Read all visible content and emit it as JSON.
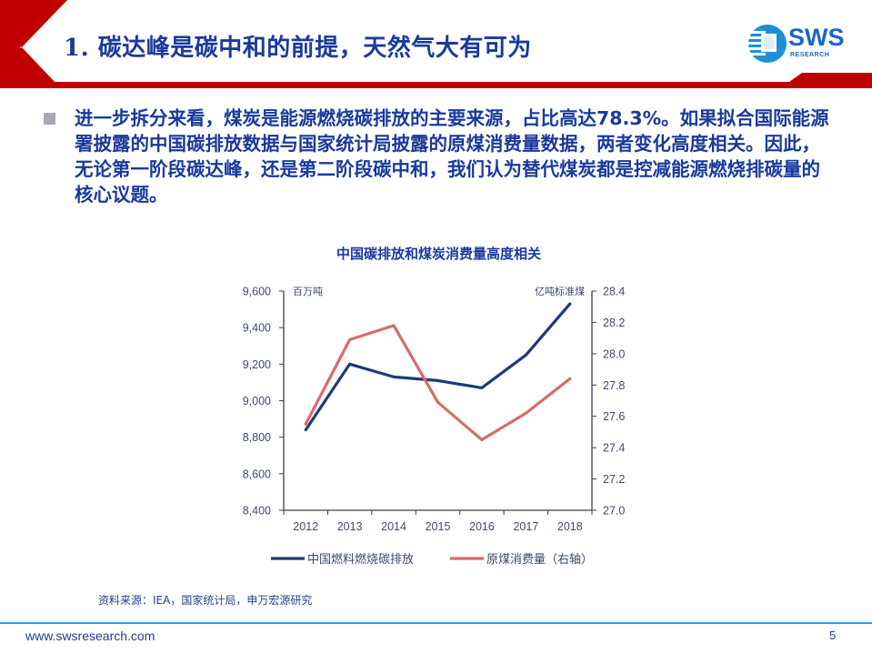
{
  "header": {
    "title": "1. 碳达峰是碳中和的前提，天然气大有可为",
    "logo_text": "SWS",
    "logo_subtext": "RESEARCH"
  },
  "bullet": {
    "text": "进一步拆分来看，煤炭是能源燃烧碳排放的主要来源，占比高达78.3%。如果拟合国际能源署披露的中国碳排放数据与国家统计局披露的原煤消费量数据，两者变化高度相关。因此，无论第一阶段碳达峰，还是第二阶段碳中和，我们认为替代煤炭都是控减能源燃烧排碳量的核心议题。"
  },
  "colors": {
    "brand_red": "#c00000",
    "title_blue": "#1a3a9c",
    "series_blue": "#1f3a7a",
    "series_red": "#d96b6b",
    "footer_line": "#1aa3e6"
  },
  "chart_data": {
    "type": "line",
    "title": "中国碳排放和煤炭消费量高度相关",
    "categories": [
      "2012",
      "2013",
      "2014",
      "2015",
      "2016",
      "2017",
      "2018"
    ],
    "series": [
      {
        "name": "中国燃料燃烧碳排放",
        "axis": "left",
        "values": [
          8840,
          9200,
          9130,
          9110,
          9070,
          9250,
          9530
        ]
      },
      {
        "name": "原煤消费量（右轴）",
        "axis": "right",
        "values": [
          27.55,
          28.09,
          28.18,
          27.69,
          27.45,
          27.62,
          27.84
        ]
      }
    ],
    "left_axis": {
      "label": "百万吨",
      "ylim": [
        8400,
        9600
      ],
      "ticks": [
        "8,400",
        "8,600",
        "8,800",
        "9,000",
        "9,200",
        "9,400",
        "9,600"
      ]
    },
    "right_axis": {
      "label": "亿吨标准煤",
      "ylim": [
        27.0,
        28.4
      ],
      "ticks": [
        "27.0",
        "27.2",
        "27.4",
        "27.6",
        "27.8",
        "28.0",
        "28.2",
        "28.4"
      ]
    },
    "xlabel": "",
    "grid": false,
    "legend_position": "bottom"
  },
  "legend": {
    "items": [
      "中国燃料燃烧碳排放",
      "原煤消费量（右轴）"
    ]
  },
  "source": "资料来源：IEA，国家统计局，申万宏源研究",
  "footer": {
    "url": "www.swsresearch.com",
    "page": "5"
  }
}
